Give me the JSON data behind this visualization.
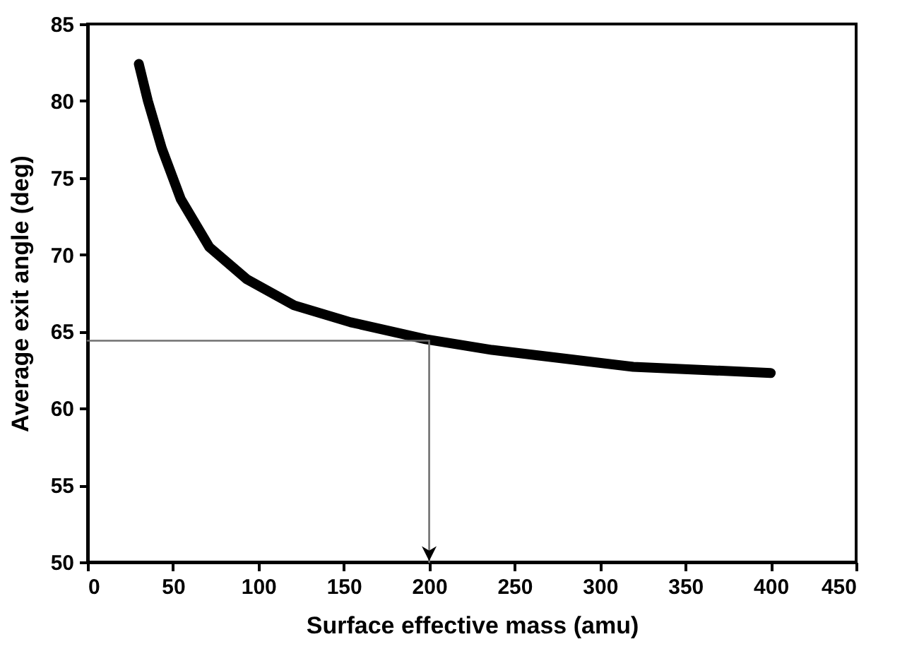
{
  "chart_data": {
    "type": "line",
    "xlabel": "Surface effective mass (amu)",
    "ylabel": "Average exit angle (deg)",
    "xlim": [
      0,
      450
    ],
    "xticks": [
      0,
      50,
      100,
      150,
      200,
      250,
      300,
      350,
      400,
      450
    ],
    "ylim": [
      50,
      85
    ],
    "yticks": [
      50,
      55,
      60,
      65,
      70,
      75,
      80,
      85
    ],
    "grid": false,
    "line_style": "solid",
    "series": [
      {
        "color": "#000000",
        "x": [
          30,
          35.3,
          43.5,
          54.6,
          71.2,
          93.2,
          120.9,
          154,
          198,
          236.8,
          319.5,
          400
        ],
        "values": [
          82.4,
          80,
          76.9,
          73.6,
          70.5,
          68.4,
          66.7,
          65.6,
          64.5,
          63.8,
          62.7,
          62.3
        ]
      },
      {
        "color": "#707070",
        "x": [
          0,
          200
        ],
        "values": [
          64.4,
          64.4
        ]
      },
      {
        "color": "#707070",
        "x": [
          200,
          200
        ],
        "values": [
          64.4,
          50
        ]
      }
    ]
  }
}
